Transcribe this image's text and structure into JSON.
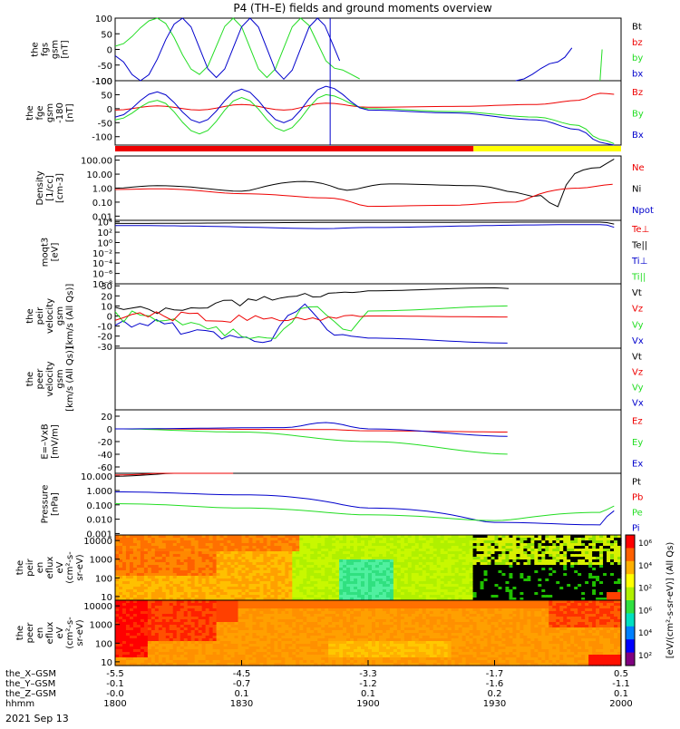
{
  "title": "P4 (TH–E) fields and ground moments overview",
  "date": "2021 Sep 13",
  "colors": {
    "black": "#000000",
    "red": "#ee0000",
    "green": "#22dd22",
    "blue": "#0000cc",
    "yellow": "#ffff00"
  },
  "panels": [
    {
      "id": "fgs",
      "ylabel": [
        "the",
        "fgs",
        "gsm",
        "[nT]"
      ],
      "ticks": [
        "100",
        "50",
        "0",
        "-50",
        "-100"
      ],
      "legend": [
        {
          "text": "Bt",
          "color": "black"
        },
        {
          "text": "bz",
          "color": "red"
        },
        {
          "text": "by",
          "color": "green"
        },
        {
          "text": "bx",
          "color": "blue"
        }
      ]
    },
    {
      "id": "fge",
      "ylabel": [
        "the",
        "fge",
        "gsm",
        "-180",
        "[nT]"
      ],
      "ticks": [
        "100",
        "50",
        "0",
        "-50",
        "-100"
      ],
      "legend": [
        {
          "text": "Bz",
          "color": "red"
        },
        {
          "text": "By",
          "color": "green"
        },
        {
          "text": "Bx",
          "color": "blue"
        }
      ]
    },
    {
      "id": "density",
      "ylabel": [
        "Density",
        "[1/cc]",
        "[cm-3]"
      ],
      "ticks": [
        "100.00",
        "10.00",
        "1.00",
        "0.10",
        "0.01"
      ],
      "legend": [
        {
          "text": "Ne",
          "color": "red"
        },
        {
          "text": "Ni",
          "color": "black"
        },
        {
          "text": "Npot",
          "color": "blue"
        }
      ]
    },
    {
      "id": "temp",
      "ylabel": [
        "moqt3",
        "[eV]"
      ],
      "ticks": [
        "10⁴",
        "10²",
        "10⁰",
        "10⁻²",
        "10⁻⁴",
        "10⁻⁶",
        "10⁻⁸"
      ],
      "legend": [
        {
          "text": "Te⊥",
          "color": "red"
        },
        {
          "text": "Te||",
          "color": "black"
        },
        {
          "text": "Ti⊥",
          "color": "blue"
        },
        {
          "text": "Ti||",
          "color": "green"
        }
      ]
    },
    {
      "id": "peir_vel",
      "ylabel": [
        "the",
        "peir",
        "velocity",
        "gsm",
        "[km/s (All Qs)]"
      ],
      "ticks": [
        "30",
        "20",
        "10",
        "0",
        "-10",
        "-20",
        "-30"
      ],
      "legend": [
        {
          "text": "Vt",
          "color": "black"
        },
        {
          "text": "Vz",
          "color": "red"
        },
        {
          "text": "Vy",
          "color": "green"
        },
        {
          "text": "Vx",
          "color": "blue"
        }
      ]
    },
    {
      "id": "peer_vel",
      "ylabel": [
        "the",
        "peer",
        "velocity",
        "gsm",
        "[km/s (All Qs)]"
      ],
      "ticks": [],
      "legend": [
        {
          "text": "Vt",
          "color": "black"
        },
        {
          "text": "Vz",
          "color": "red"
        },
        {
          "text": "Vy",
          "color": "green"
        },
        {
          "text": "Vx",
          "color": "blue"
        }
      ]
    },
    {
      "id": "efield",
      "ylabel": [
        "E=–VxB",
        "[mV/m]"
      ],
      "ticks": [
        "20",
        "0",
        "-20",
        "-40",
        "-60"
      ],
      "legend": [
        {
          "text": "Ez",
          "color": "red"
        },
        {
          "text": "Ey",
          "color": "green"
        },
        {
          "text": "Ex",
          "color": "blue"
        }
      ]
    },
    {
      "id": "pressure",
      "ylabel": [
        "Pressure",
        "[nPa]"
      ],
      "ticks": [
        "10.000",
        "1.000",
        "0.100",
        "0.010",
        "0.001"
      ],
      "legend": [
        {
          "text": "Pt",
          "color": "black"
        },
        {
          "text": "Pb",
          "color": "red"
        },
        {
          "text": "Pe",
          "color": "green"
        },
        {
          "text": "Pi",
          "color": "blue"
        }
      ]
    },
    {
      "id": "peir_spec",
      "ylabel": [
        "the",
        "peir",
        "en",
        "eflux",
        "eV",
        "(cm²-s-",
        "sr-eV)"
      ],
      "ticks": [
        "10000",
        "1000",
        "100",
        "10"
      ],
      "legend": []
    },
    {
      "id": "peer_spec",
      "ylabel": [
        "the",
        "peer",
        "en",
        "eflux",
        "eV",
        "(cm²-s-",
        "sr-eV)"
      ],
      "ticks": [
        "10000",
        "1000",
        "100",
        "10"
      ],
      "legend": []
    }
  ],
  "colorbar": {
    "ticks": [
      "10⁶",
      "10⁴",
      "10²",
      "10⁶",
      "10⁴",
      "10²"
    ],
    "label": "[eV/(cm²-s-sr-eV)] (All Qs)"
  },
  "xaxis": {
    "rows": [
      {
        "label": "the_X–GSM",
        "values": [
          "-5.5",
          "-4.5",
          "-3.3",
          "-1.7",
          "0.5"
        ]
      },
      {
        "label": "the_Y–GSM",
        "values": [
          "-0.1",
          "-0.7",
          "-1.2",
          "-1.6",
          "-1.1"
        ]
      },
      {
        "label": "the_Z–GSM",
        "values": [
          "-0.0",
          "0.1",
          "0.1",
          "0.2",
          "0.1"
        ]
      },
      {
        "label": "hhmm",
        "values": [
          "1800",
          "1830",
          "1900",
          "1930",
          "2000"
        ]
      }
    ]
  },
  "chart_data": {
    "type": "line",
    "title": "P4 (TH–E) fields and ground moments overview",
    "x": {
      "unit": "hhmm",
      "range": [
        1800,
        2000
      ],
      "ticks": [
        "1800",
        "1830",
        "1900",
        "1930",
        "2000"
      ]
    },
    "series": [
      {
        "panel": "fgs",
        "name": "by",
        "times": [
          1800,
          1810,
          1820,
          1828,
          1836,
          1844,
          1852,
          1900
        ],
        "values": [
          10,
          100,
          -80,
          100,
          -90,
          100,
          -60,
          -100
        ]
      },
      {
        "panel": "fgs",
        "name": "bx",
        "times": [
          1800,
          1806,
          1816,
          1824,
          1832,
          1840,
          1848,
          1855
        ],
        "values": [
          -20,
          -100,
          100,
          -90,
          100,
          -95,
          100,
          -60
        ]
      },
      {
        "panel": "fgs",
        "name": "by_late",
        "times": [
          1955,
          1956
        ],
        "values": [
          -100,
          100
        ]
      },
      {
        "panel": "fgs",
        "name": "bx_late",
        "times": [
          1935,
          1945,
          1950
        ],
        "values": [
          -100,
          -40,
          20
        ]
      },
      {
        "panel": "fge",
        "name": "Bz",
        "times": [
          1800,
          1810,
          1820,
          1830,
          1840,
          1850,
          1900,
          1920,
          1940,
          1950,
          1955,
          2000
        ],
        "values": [
          -5,
          10,
          -5,
          15,
          -5,
          20,
          5,
          8,
          15,
          30,
          55,
          50
        ]
      },
      {
        "panel": "fge",
        "name": "By",
        "times": [
          1800,
          1810,
          1820,
          1830,
          1840,
          1850,
          1900,
          1920,
          1940,
          1950,
          1955,
          2000
        ],
        "values": [
          -40,
          30,
          -90,
          40,
          -80,
          50,
          0,
          -10,
          -30,
          -60,
          -110,
          -130
        ]
      },
      {
        "panel": "fge",
        "name": "Bx",
        "times": [
          1800,
          1810,
          1820,
          1830,
          1840,
          1850,
          1900,
          1920,
          1940,
          1950,
          1955,
          2000
        ],
        "values": [
          -30,
          60,
          -50,
          70,
          -50,
          80,
          -5,
          -15,
          -40,
          -75,
          -120,
          -140
        ]
      },
      {
        "panel": "density",
        "name": "Ni",
        "times": [
          1800,
          1810,
          1830,
          1845,
          1855,
          1905,
          1925,
          1935,
          1945,
          1955,
          2000
        ],
        "values": [
          1,
          1.5,
          0.6,
          3,
          0.7,
          2,
          1.5,
          0.5,
          0.1,
          30,
          150
        ]
      },
      {
        "panel": "density",
        "name": "Ne",
        "times": [
          1800,
          1810,
          1830,
          1850,
          1900,
          1920,
          1935,
          1950,
          2000
        ],
        "values": [
          0.8,
          0.9,
          0.4,
          0.2,
          0.05,
          0.06,
          0.1,
          1,
          2
        ]
      },
      {
        "panel": "temp",
        "name": "Te||",
        "times": [
          1800,
          1900,
          1955,
          2000
        ],
        "values": [
          5000,
          8000,
          9000,
          2000
        ]
      },
      {
        "panel": "temp",
        "name": "Ti_perp",
        "times": [
          1800,
          1850,
          1900,
          1955,
          2000
        ],
        "values": [
          2000,
          500,
          800,
          3000,
          200
        ]
      },
      {
        "panel": "peir_vel",
        "name": "Vt",
        "times": [
          1800,
          1820,
          1845,
          1900,
          1930,
          1935
        ],
        "values": [
          5,
          10,
          20,
          25,
          28,
          27
        ]
      },
      {
        "panel": "peir_vel",
        "name": "Vx",
        "times": [
          1800,
          1835,
          1845,
          1852,
          1900,
          1935
        ],
        "values": [
          -5,
          -25,
          10,
          -18,
          -22,
          -27
        ]
      },
      {
        "panel": "peir_vel",
        "name": "Vy",
        "times": [
          1800,
          1838,
          1846,
          1856,
          1900,
          1935
        ],
        "values": [
          0,
          -20,
          10,
          -15,
          5,
          10
        ]
      },
      {
        "panel": "peir_vel",
        "name": "Vz",
        "times": [
          1800,
          1845,
          1900,
          1935
        ],
        "values": [
          0,
          -3,
          0,
          -1
        ]
      },
      {
        "panel": "efield",
        "name": "Ez",
        "times": [
          1800,
          1850,
          1900,
          1935
        ],
        "values": [
          0,
          -1,
          -3,
          -5
        ]
      },
      {
        "panel": "efield",
        "name": "Ey",
        "times": [
          1800,
          1830,
          1900,
          1935
        ],
        "values": [
          0,
          -5,
          -20,
          -40
        ]
      },
      {
        "panel": "efield",
        "name": "Ex",
        "times": [
          1800,
          1840,
          1850,
          1900,
          1935
        ],
        "values": [
          0,
          2,
          10,
          0,
          -12
        ]
      },
      {
        "panel": "pressure",
        "name": "Pt",
        "times": [
          1800,
          1830
        ],
        "values": [
          10,
          25
        ]
      },
      {
        "panel": "pressure",
        "name": "Pb",
        "times": [
          1800,
          1830
        ],
        "values": [
          12,
          28
        ]
      },
      {
        "panel": "pressure",
        "name": "Pi",
        "times": [
          1800,
          1830,
          1900,
          1930,
          1955,
          2000
        ],
        "values": [
          0.8,
          0.5,
          0.06,
          0.006,
          0.004,
          0.05
        ]
      },
      {
        "panel": "pressure",
        "name": "Pe",
        "times": [
          1800,
          1830,
          1900,
          1930,
          1955,
          2000
        ],
        "values": [
          0.12,
          0.06,
          0.02,
          0.008,
          0.03,
          0.1
        ]
      }
    ]
  }
}
